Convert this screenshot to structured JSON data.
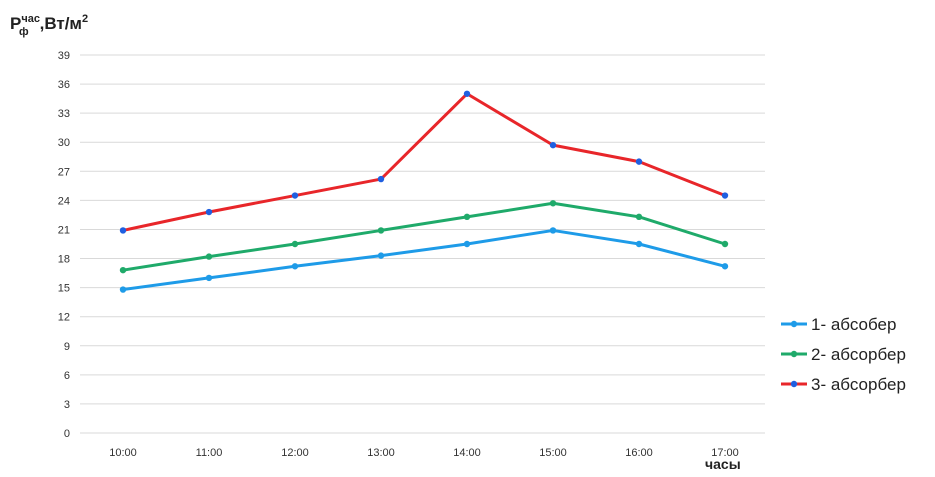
{
  "chart_data": {
    "type": "line",
    "ylabel": {
      "base": "P",
      "sup": "час",
      "sub": "ф",
      "rest": ",Вт/м",
      "exp": "2"
    },
    "xlabel": "часы",
    "categories": [
      "10:00",
      "11:00",
      "12:00",
      "13:00",
      "14:00",
      "15:00",
      "16:00",
      "17:00"
    ],
    "yticks": [
      "0",
      "3",
      "6",
      "9",
      "12",
      "15",
      "18",
      "21",
      "24",
      "27",
      "30",
      "33",
      "36",
      "39"
    ],
    "ylim": [
      0,
      39
    ],
    "grid": true,
    "legend_position": "right",
    "series": [
      {
        "name": "1- абсобер",
        "color": "#1e9be8",
        "marker_color": "#1e9be8",
        "values": [
          14.8,
          16.0,
          17.2,
          18.3,
          19.5,
          20.9,
          19.5,
          17.2
        ]
      },
      {
        "name": "2- абсорбер",
        "color": "#1faa6a",
        "marker_color": "#1faa6a",
        "values": [
          16.8,
          18.2,
          19.5,
          20.9,
          22.3,
          23.7,
          22.3,
          19.5
        ]
      },
      {
        "name": "3- абсорбер",
        "color": "#e8262a",
        "marker_color": "#1f5fe0",
        "values": [
          20.9,
          22.8,
          24.5,
          26.2,
          35.0,
          29.7,
          28.0,
          24.5
        ]
      }
    ]
  }
}
